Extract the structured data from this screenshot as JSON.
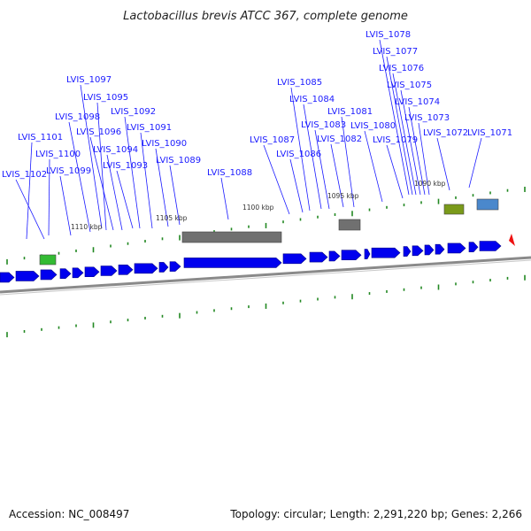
{
  "title": "Lactobacillus brevis ATCC 367, complete genome",
  "footer": {
    "accession": "Accession: NC_008497",
    "topology": "Topology: circular; Length: 2,291,220 bp; Genes: 2,266"
  },
  "colors": {
    "cds": "#0000ee",
    "rna_gray": "#707070",
    "green_feature": "#33bb33",
    "olive_feature": "#7a9a1a",
    "blue_feature": "#4a88cc",
    "label": "#1a1aff",
    "tick": "#228822",
    "backbone": "#8a8a8a",
    "arrow_red": "#ee1111"
  },
  "scale_labels": [
    "1110 kbp",
    "1105 kbp",
    "1100 kbp",
    "1095 kbp",
    "1090 kbp"
  ],
  "gene_labels": [
    "LVIS_1078",
    "LVIS_1077",
    "LVIS_1076",
    "LVIS_1075",
    "LVIS_1074",
    "LVIS_1073",
    "LVIS_1072",
    "LVIS_1071",
    "LVIS_1097",
    "LVIS_1095",
    "LVIS_1092",
    "LVIS_1098",
    "LVIS_1091",
    "LVIS_1096",
    "LVIS_1090",
    "LVIS_1101",
    "LVIS_1094",
    "LVIS_1089",
    "LVIS_1100",
    "LVIS_1093",
    "LVIS_1099",
    "LVIS_1102",
    "LVIS_1085",
    "LVIS_1084",
    "LVIS_1081",
    "LVIS_1083",
    "LVIS_1080",
    "LVIS_1087",
    "LVIS_1082",
    "LVIS_1079",
    "LVIS_1086",
    "LVIS_1088"
  ]
}
